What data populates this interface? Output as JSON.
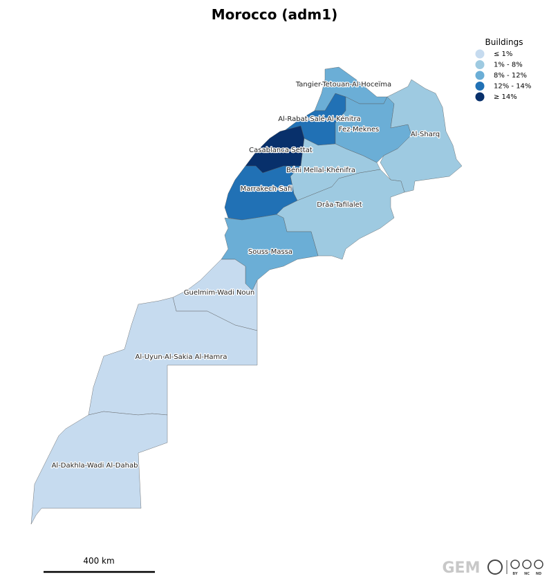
{
  "title": "Morocco (adm1)",
  "legend": {
    "title": "Buildings",
    "items": [
      {
        "label": "≤ 1%",
        "color": "#c6dbef"
      },
      {
        "label": "1% - 8%",
        "color": "#9ecae1"
      },
      {
        "label": "8% - 12%",
        "color": "#6baed6"
      },
      {
        "label": "12% - 14%",
        "color": "#2171b5"
      },
      {
        "label": "≥ 14%",
        "color": "#08306b"
      }
    ]
  },
  "regions": [
    {
      "name": "Tangier-Tetouan-Al-Hoceïma",
      "color": "#6baed6"
    },
    {
      "name": "Al-Rabat-Salé-Al-Kénitra",
      "color": "#2171b5"
    },
    {
      "name": "Fez-Meknes",
      "color": "#6baed6"
    },
    {
      "name": "Al-Sharq",
      "color": "#9ecae1"
    },
    {
      "name": "Casablanca-Settat",
      "color": "#08306b"
    },
    {
      "name": "Béni Mellal-Khénifra",
      "color": "#9ecae1"
    },
    {
      "name": "Marrakech-Safi",
      "color": "#2171b5"
    },
    {
      "name": "Drâa-Tafilalet",
      "color": "#9ecae1"
    },
    {
      "name": "Souss-Massa",
      "color": "#6baed6"
    },
    {
      "name": "Guelmim-Wadi Noun",
      "color": "#c6dbef"
    },
    {
      "name": "Al-Uyun-Al-Sakia Al-Hamra",
      "color": "#c6dbef"
    },
    {
      "name": "Al-Dakhla-Wadi Al-Dahab",
      "color": "#c6dbef"
    }
  ],
  "scale_bar": "400 km",
  "logo": "GEM",
  "license_marks": [
    "BY",
    "NC",
    "ND"
  ]
}
